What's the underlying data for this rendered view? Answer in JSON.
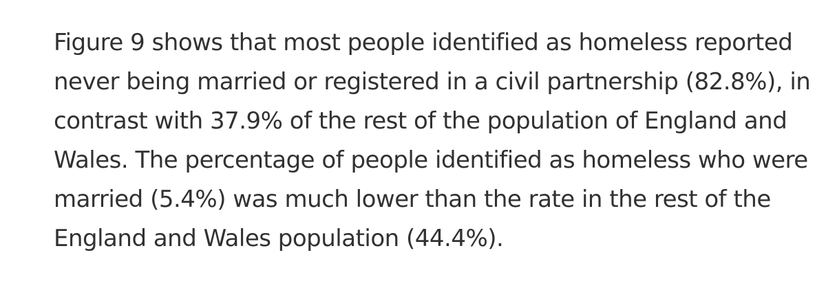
{
  "article": {
    "paragraph_lines": [
      "Figure 9 shows that most people identified as homeless reported",
      "never being married or registered in a civil partnership (82.8%), in",
      "contrast with 37.9% of the rest of the population of England and",
      "Wales. The percentage of people identified as homeless who were",
      "married (5.4%) was much lower than the rate in the rest of the",
      "England and Wales population (44.4%)."
    ]
  }
}
